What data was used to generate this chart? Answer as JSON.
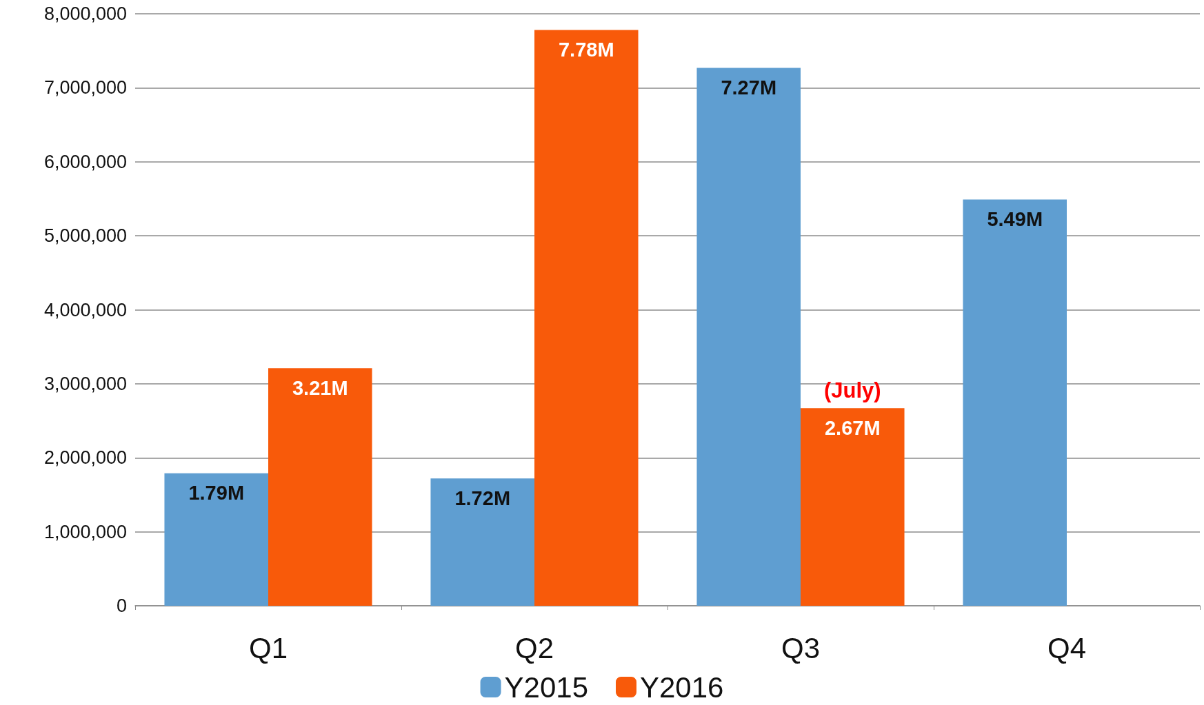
{
  "chart_data": {
    "type": "bar",
    "categories": [
      "Q1",
      "Q2",
      "Q3",
      "Q4"
    ],
    "series": [
      {
        "name": "Y2015",
        "color": "#5f9ed1",
        "values": [
          1790000,
          1720000,
          7270000,
          5490000
        ],
        "value_labels": [
          "1.79M",
          "1.72M",
          "7.27M",
          "5.49M"
        ]
      },
      {
        "name": "Y2016",
        "color": "#f85a0a",
        "values": [
          3210000,
          7780000,
          2670000,
          null
        ],
        "value_labels": [
          "3.21M",
          "7.78M",
          "2.67M",
          null
        ]
      }
    ],
    "ylim": [
      0,
      8000000
    ],
    "yticks": [
      {
        "value": 0,
        "label": "0"
      },
      {
        "value": 1000000,
        "label": "1,000,000"
      },
      {
        "value": 2000000,
        "label": "2,000,000"
      },
      {
        "value": 3000000,
        "label": "3,000,000"
      },
      {
        "value": 4000000,
        "label": "4,000,000"
      },
      {
        "value": 5000000,
        "label": "5,000,000"
      },
      {
        "value": 6000000,
        "label": "6,000,000"
      },
      {
        "value": 7000000,
        "label": "7,000,000"
      },
      {
        "value": 8000000,
        "label": "8,000,000"
      }
    ],
    "annotations": [
      {
        "text": "(July)",
        "x": "Q3",
        "y": 2670000
      }
    ],
    "grid": "y",
    "legend": "bottom"
  }
}
